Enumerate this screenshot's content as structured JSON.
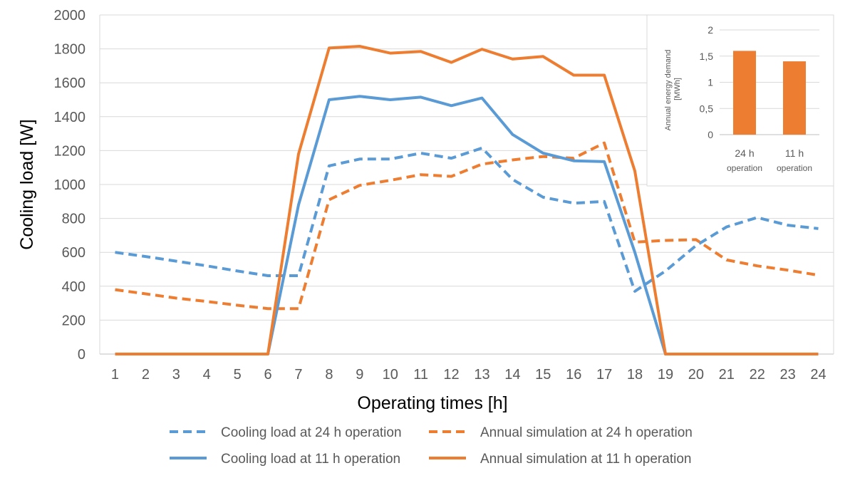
{
  "chart_data": [
    {
      "type": "line",
      "xlabel": "Operating times [h]",
      "ylabel": "Cooling load [W]",
      "ylim": [
        0,
        2000
      ],
      "yticks": [
        0,
        200,
        400,
        600,
        800,
        1000,
        1200,
        1400,
        1600,
        1800,
        2000
      ],
      "categories": [
        "1",
        "2",
        "3",
        "4",
        "5",
        "6",
        "7",
        "8",
        "9",
        "10",
        "11",
        "12",
        "13",
        "14",
        "15",
        "16",
        "17",
        "18",
        "19",
        "20",
        "21",
        "22",
        "23",
        "24"
      ],
      "grid": true,
      "legend_position": "bottom",
      "series": [
        {
          "name": "Cooling load at 24 h operation",
          "color": "#5B9BD5",
          "dash": true,
          "values": [
            600,
            575,
            548,
            520,
            490,
            462,
            462,
            1110,
            1150,
            1150,
            1185,
            1155,
            1215,
            1030,
            925,
            890,
            900,
            370,
            490,
            640,
            750,
            805,
            760,
            740
          ]
        },
        {
          "name": "Annual simulation at 24 h operation",
          "color": "#ED7D31",
          "dash": true,
          "values": [
            380,
            355,
            330,
            310,
            288,
            268,
            268,
            910,
            995,
            1025,
            1058,
            1048,
            1120,
            1145,
            1165,
            1155,
            1245,
            660,
            670,
            675,
            555,
            520,
            495,
            465
          ]
        },
        {
          "name": "Cooling load at 11 h operation",
          "color": "#5B9BD5",
          "dash": false,
          "values": [
            0,
            0,
            0,
            0,
            0,
            0,
            880,
            1500,
            1520,
            1500,
            1515,
            1465,
            1510,
            1295,
            1185,
            1140,
            1135,
            600,
            0,
            0,
            0,
            0,
            0,
            0
          ]
        },
        {
          "name": "Annual simulation at 11 h operation",
          "color": "#ED7D31",
          "dash": false,
          "values": [
            0,
            0,
            0,
            0,
            0,
            0,
            1180,
            1805,
            1815,
            1775,
            1785,
            1720,
            1798,
            1740,
            1755,
            1645,
            1645,
            1080,
            0,
            0,
            0,
            0,
            0,
            0
          ]
        }
      ]
    },
    {
      "type": "bar",
      "ylabel": "Annual energy demand [MWh]",
      "ylim": [
        0,
        2
      ],
      "yticks": [
        "0",
        "0,5",
        "1",
        "1,5",
        "2"
      ],
      "ytick_values": [
        0,
        0.5,
        1,
        1.5,
        2
      ],
      "categories": [
        {
          "line1": "24 h",
          "line2": "operation"
        },
        {
          "line1": "11 h",
          "line2": "operation"
        }
      ],
      "values": [
        1.6,
        1.4
      ],
      "color": "#ED7D31",
      "grid": true
    }
  ]
}
